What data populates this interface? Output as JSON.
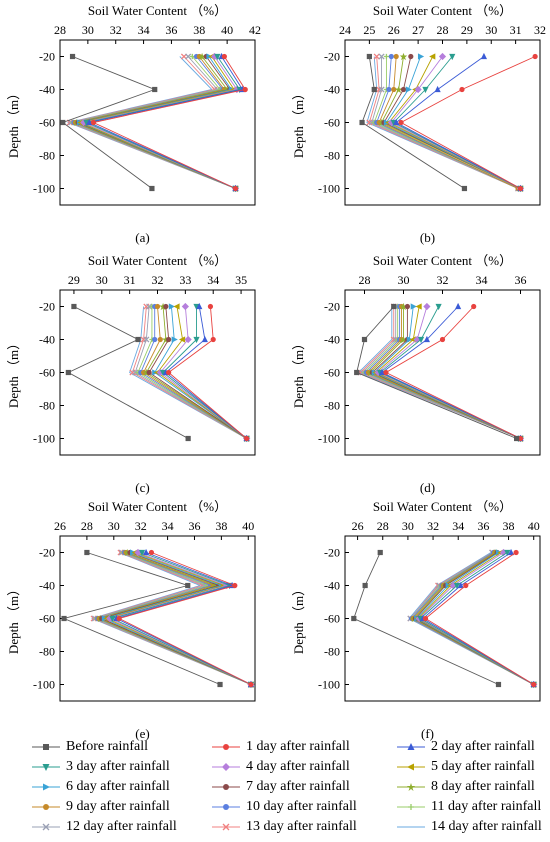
{
  "chart_data": [
    {
      "type": "line",
      "panel_label": "(a)",
      "xlabel": "Soil Water  Content （%）",
      "ylabel": "Depth （m）",
      "xlim": [
        28,
        42
      ],
      "xticks": [
        "28",
        "30",
        "32",
        "34",
        "36",
        "38",
        "40",
        "42"
      ],
      "ylim": [
        -110,
        -10
      ],
      "yticks": [
        "-20",
        "-40",
        "-60",
        "-80",
        "-100"
      ],
      "depths": [
        -20,
        -40,
        -60,
        -100
      ],
      "series_values": [
        [
          28.9,
          34.8,
          28.2,
          34.6
        ],
        [
          39.8,
          41.3,
          30.4,
          40.6
        ],
        [
          39.6,
          41.1,
          30.1,
          40.6
        ],
        [
          39.3,
          40.9,
          29.9,
          40.6
        ],
        [
          39.1,
          40.7,
          29.7,
          40.6
        ],
        [
          38.9,
          40.5,
          29.5,
          40.6
        ],
        [
          38.7,
          40.3,
          29.4,
          40.6
        ],
        [
          38.5,
          40.2,
          29.3,
          40.6
        ],
        [
          38.2,
          40.0,
          29.2,
          40.6
        ],
        [
          38.0,
          39.8,
          29.1,
          40.6
        ],
        [
          37.8,
          39.7,
          29.0,
          40.6
        ],
        [
          37.5,
          39.5,
          28.9,
          40.6
        ],
        [
          37.2,
          39.3,
          28.8,
          40.6
        ],
        [
          36.9,
          39.1,
          28.7,
          40.6
        ],
        [
          36.6,
          38.9,
          28.6,
          40.6
        ]
      ]
    },
    {
      "type": "line",
      "panel_label": "(b)",
      "xlabel": "Soil Water  Content （%）",
      "ylabel": "Depth （m）",
      "xlim": [
        24,
        32
      ],
      "xticks": [
        "24",
        "25",
        "26",
        "27",
        "28",
        "29",
        "30",
        "31",
        "32"
      ],
      "ylim": [
        -110,
        -10
      ],
      "yticks": [
        "-20",
        "-40",
        "-60",
        "-80",
        "-100"
      ],
      "depths": [
        -20,
        -40,
        -60,
        -100
      ],
      "series_values": [
        [
          25.0,
          25.2,
          24.7,
          28.9
        ],
        [
          31.8,
          28.8,
          26.3,
          31.2
        ],
        [
          29.7,
          27.8,
          26.1,
          31.2
        ],
        [
          28.4,
          27.3,
          26.0,
          31.2
        ],
        [
          28.0,
          27.0,
          25.9,
          31.2
        ],
        [
          27.6,
          26.9,
          25.8,
          31.2
        ],
        [
          27.1,
          26.6,
          25.7,
          31.2
        ],
        [
          26.7,
          26.4,
          25.6,
          31.2
        ],
        [
          26.4,
          26.2,
          25.5,
          31.2
        ],
        [
          26.1,
          26.0,
          25.4,
          31.1
        ],
        [
          25.9,
          25.8,
          25.3,
          31.1
        ],
        [
          25.7,
          25.7,
          25.2,
          31.1
        ],
        [
          25.5,
          25.5,
          25.1,
          31.1
        ],
        [
          25.3,
          25.4,
          25.0,
          31.1
        ],
        [
          25.2,
          25.3,
          24.9,
          31.1
        ]
      ]
    },
    {
      "type": "line",
      "panel_label": "(c)",
      "xlabel": "Soil Water  Content （%）",
      "ylabel": "Depth （m）",
      "xlim": [
        28.5,
        35.5
      ],
      "xticks": [
        "29",
        "30",
        "31",
        "32",
        "33",
        "34",
        "35"
      ],
      "ylim": [
        -110,
        -10
      ],
      "yticks": [
        "-20",
        "-40",
        "-60",
        "-80",
        "-100"
      ],
      "depths": [
        -20,
        -40,
        -60,
        -100
      ],
      "series_values": [
        [
          29.0,
          31.3,
          28.8,
          33.1
        ],
        [
          33.9,
          34.0,
          32.4,
          35.2
        ],
        [
          33.5,
          33.7,
          32.3,
          35.2
        ],
        [
          33.4,
          33.4,
          32.2,
          35.2
        ],
        [
          33.0,
          33.1,
          32.1,
          35.2
        ],
        [
          32.7,
          32.9,
          32.0,
          35.2
        ],
        [
          32.5,
          32.6,
          31.9,
          35.2
        ],
        [
          32.3,
          32.4,
          31.7,
          35.2
        ],
        [
          32.2,
          32.3,
          31.6,
          35.2
        ],
        [
          32.0,
          32.1,
          31.5,
          35.2
        ],
        [
          31.9,
          31.9,
          31.4,
          35.2
        ],
        [
          31.8,
          31.8,
          31.3,
          35.2
        ],
        [
          31.7,
          31.6,
          31.2,
          35.2
        ],
        [
          31.6,
          31.5,
          31.1,
          35.2
        ],
        [
          31.5,
          31.4,
          31.0,
          35.2
        ]
      ]
    },
    {
      "type": "line",
      "panel_label": "(d)",
      "xlabel": "Soil Water  Content （%）",
      "ylabel": "Depth （m）",
      "xlim": [
        27,
        37
      ],
      "xticks": [
        "28",
        "30",
        "32",
        "34",
        "36"
      ],
      "ylim": [
        -110,
        -10
      ],
      "yticks": [
        "-20",
        "-40",
        "-60",
        "-80",
        "-100"
      ],
      "depths": [
        -20,
        -40,
        -60,
        -100
      ],
      "series_values": [
        [
          29.5,
          28.0,
          27.6,
          35.8
        ],
        [
          33.6,
          32.0,
          29.1,
          36.0
        ],
        [
          32.8,
          31.2,
          28.9,
          36.0
        ],
        [
          31.8,
          30.9,
          28.8,
          36.0
        ],
        [
          31.2,
          30.7,
          28.7,
          36.0
        ],
        [
          30.8,
          30.5,
          28.6,
          36.0
        ],
        [
          30.5,
          30.3,
          28.5,
          36.0
        ],
        [
          30.2,
          30.2,
          28.4,
          36.0
        ],
        [
          30.0,
          30.0,
          28.3,
          36.0
        ],
        [
          29.9,
          29.9,
          28.2,
          36.0
        ],
        [
          29.8,
          29.8,
          28.1,
          36.0
        ],
        [
          29.7,
          29.7,
          28.0,
          36.0
        ],
        [
          29.6,
          29.6,
          27.9,
          36.0
        ],
        [
          29.5,
          29.5,
          27.8,
          36.0
        ],
        [
          29.4,
          29.4,
          27.7,
          36.0
        ]
      ]
    },
    {
      "type": "line",
      "panel_label": "(e)",
      "xlabel": "Soil Water  Content （%）",
      "ylabel": "Depth （m）",
      "xlim": [
        26,
        40.5
      ],
      "xticks": [
        "26",
        "28",
        "30",
        "32",
        "34",
        "36",
        "38",
        "40"
      ],
      "ylim": [
        -110,
        -10
      ],
      "yticks": [
        "-20",
        "-40",
        "-60",
        "-80",
        "-100"
      ],
      "depths": [
        -20,
        -40,
        -60,
        -100
      ],
      "series_values": [
        [
          28.0,
          35.5,
          26.3,
          37.9
        ],
        [
          32.8,
          39.0,
          30.4,
          40.2
        ],
        [
          32.4,
          38.8,
          30.2,
          40.2
        ],
        [
          32.1,
          38.6,
          29.9,
          40.2
        ],
        [
          31.8,
          38.4,
          29.7,
          40.2
        ],
        [
          31.6,
          38.2,
          29.5,
          40.2
        ],
        [
          31.4,
          38.0,
          29.3,
          40.2
        ],
        [
          31.2,
          37.8,
          29.1,
          40.2
        ],
        [
          31.0,
          37.6,
          29.0,
          40.2
        ],
        [
          30.9,
          37.4,
          28.9,
          40.2
        ],
        [
          30.8,
          37.2,
          28.8,
          40.2
        ],
        [
          30.7,
          37.0,
          28.7,
          40.2
        ],
        [
          30.6,
          36.8,
          28.6,
          40.2
        ],
        [
          30.5,
          36.6,
          28.5,
          40.2
        ],
        [
          30.4,
          36.4,
          28.4,
          40.2
        ]
      ]
    },
    {
      "type": "line",
      "panel_label": "(f)",
      "xlabel": "Soil Water  Content （%）",
      "ylabel": "Depth （m）",
      "xlim": [
        25,
        40.5
      ],
      "xticks": [
        "26",
        "28",
        "30",
        "32",
        "34",
        "36",
        "38",
        "40"
      ],
      "ylim": [
        -110,
        -10
      ],
      "yticks": [
        "-20",
        "-40",
        "-60",
        "-80",
        "-100"
      ],
      "depths": [
        -20,
        -40,
        -60,
        -100
      ],
      "series_values": [
        [
          27.8,
          26.6,
          25.7,
          37.2
        ],
        [
          38.6,
          34.6,
          31.4,
          40.0
        ],
        [
          38.2,
          34.2,
          31.2,
          40.0
        ],
        [
          37.9,
          33.9,
          31.0,
          40.0
        ],
        [
          37.6,
          33.6,
          30.9,
          40.0
        ],
        [
          37.4,
          33.4,
          30.8,
          40.0
        ],
        [
          37.2,
          33.2,
          30.7,
          40.0
        ],
        [
          37.1,
          33.0,
          30.6,
          40.0
        ],
        [
          37.0,
          32.9,
          30.5,
          40.0
        ],
        [
          36.9,
          32.8,
          30.4,
          40.0
        ],
        [
          36.8,
          32.7,
          30.3,
          40.0
        ],
        [
          36.8,
          32.6,
          30.3,
          40.0
        ],
        [
          36.7,
          32.5,
          30.2,
          40.0
        ],
        [
          36.7,
          32.4,
          30.2,
          40.0
        ],
        [
          36.6,
          32.3,
          30.1,
          40.0
        ]
      ]
    }
  ],
  "legend": {
    "entries": [
      {
        "name": "Before rainfall",
        "color": "#595959",
        "marker": "square"
      },
      {
        "name": "1 day after rainfall",
        "color": "#e8423f",
        "marker": "circle"
      },
      {
        "name": "2 day after rainfall",
        "color": "#3b5bd6",
        "marker": "triangle-up"
      },
      {
        "name": "3 day after rainfall",
        "color": "#2a9d8f",
        "marker": "triangle-down"
      },
      {
        "name": "4 day after rainfall",
        "color": "#b57edc",
        "marker": "diamond"
      },
      {
        "name": "5 day after rainfall",
        "color": "#b8a200",
        "marker": "triangle-left"
      },
      {
        "name": "6 day after rainfall",
        "color": "#3aa3d6",
        "marker": "triangle-right"
      },
      {
        "name": "7 day after rainfall",
        "color": "#8b4a4a",
        "marker": "hexagon"
      },
      {
        "name": "8 day after rainfall",
        "color": "#8fae2e",
        "marker": "star"
      },
      {
        "name": "9 day after rainfall",
        "color": "#c68a2a",
        "marker": "circle"
      },
      {
        "name": "10 day after rainfall",
        "color": "#5b7fe0",
        "marker": "circle"
      },
      {
        "name": "11 day after rainfall",
        "color": "#9acd6a",
        "marker": "plus"
      },
      {
        "name": "12 day after rainfall",
        "color": "#9aa0b4",
        "marker": "cross"
      },
      {
        "name": "13 day after rainfall",
        "color": "#f08080",
        "marker": "cross"
      },
      {
        "name": "14 day after rainfall",
        "color": "#6aa9e0",
        "marker": "none"
      }
    ]
  }
}
